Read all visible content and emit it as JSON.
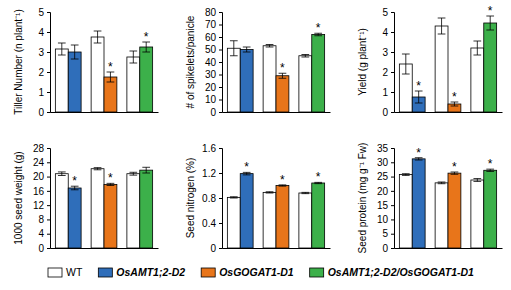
{
  "chart_data": [
    {
      "type": "bar",
      "y_label": "Tiller Number (n plant⁻¹)",
      "categories": [
        null,
        null,
        null
      ],
      "ylim": [
        0,
        5
      ],
      "yticks": [
        0,
        1,
        2,
        3,
        4,
        5
      ],
      "tick_labels": "y",
      "series": [
        {
          "name": "WT",
          "color": "#ffffff",
          "values": [
            3.15,
            3.75,
            2.75
          ],
          "errors": [
            0.3,
            0.3,
            0.3
          ]
        },
        {
          "name": "OsAMT1;2-D2",
          "color": "#2f6eba",
          "values": [
            3.0,
            null,
            null
          ],
          "errors": [
            0.35,
            null,
            null
          ],
          "annotations": [
            null,
            null,
            null
          ]
        },
        {
          "name": "OsGOGAT1-D1",
          "color": "#e8751a",
          "values": [
            null,
            1.75,
            null
          ],
          "errors": [
            null,
            0.25,
            null
          ],
          "annotations": [
            null,
            "*",
            null
          ]
        },
        {
          "name": "OsAMT1;2-D2/OsGOGAT1-D1",
          "color": "#3cb04a",
          "values": [
            null,
            null,
            3.25
          ],
          "errors": [
            null,
            null,
            0.25
          ],
          "annotations": [
            null,
            null,
            "*"
          ]
        }
      ]
    },
    {
      "type": "bar",
      "y_label": "# of spikelets/panicle",
      "categories": [
        null,
        null,
        null
      ],
      "ylim": [
        0,
        80
      ],
      "yticks": [
        0,
        10,
        20,
        30,
        40,
        50,
        60,
        70,
        80
      ],
      "tick_labels": "y",
      "series": [
        {
          "name": "WT",
          "color": "#ffffff",
          "values": [
            51,
            53,
            45
          ],
          "errors": [
            6,
            1,
            1
          ]
        },
        {
          "name": "OsAMT1;2-D2",
          "color": "#2f6eba",
          "values": [
            50,
            null,
            null
          ],
          "errors": [
            2,
            null,
            null
          ],
          "annotations": [
            null,
            null,
            null
          ]
        },
        {
          "name": "OsGOGAT1-D1",
          "color": "#e8751a",
          "values": [
            null,
            29,
            null
          ],
          "errors": [
            null,
            2,
            null
          ],
          "annotations": [
            null,
            "*",
            null
          ]
        },
        {
          "name": "OsAMT1;2-D2/OsGOGAT1-D1",
          "color": "#3cb04a",
          "values": [
            null,
            null,
            62
          ],
          "errors": [
            null,
            null,
            1
          ],
          "annotations": [
            null,
            null,
            "*"
          ]
        }
      ]
    },
    {
      "type": "bar",
      "y_label": "Yield (g plant⁻¹)",
      "categories": [
        null,
        null,
        null
      ],
      "ylim": [
        0,
        5
      ],
      "yticks": [
        0,
        1,
        2,
        3,
        4,
        5
      ],
      "tick_labels": "y",
      "series": [
        {
          "name": "WT",
          "color": "#ffffff",
          "values": [
            2.4,
            4.3,
            3.2
          ],
          "errors": [
            0.5,
            0.4,
            0.35
          ]
        },
        {
          "name": "OsAMT1;2-D2",
          "color": "#2f6eba",
          "values": [
            0.75,
            null,
            null
          ],
          "errors": [
            0.3,
            null,
            null
          ],
          "annotations": [
            "*",
            null,
            null
          ]
        },
        {
          "name": "OsGOGAT1-D1",
          "color": "#e8751a",
          "values": [
            null,
            0.4,
            null
          ],
          "errors": [
            null,
            0.1,
            null
          ],
          "annotations": [
            null,
            "*",
            null
          ]
        },
        {
          "name": "OsAMT1;2-D2/OsGOGAT1-D1",
          "color": "#3cb04a",
          "values": [
            null,
            null,
            4.45
          ],
          "errors": [
            null,
            null,
            0.35
          ],
          "annotations": [
            null,
            null,
            "*"
          ]
        }
      ]
    },
    {
      "type": "bar",
      "y_label": "1000 seed weight (g)",
      "categories": [
        null,
        null,
        null
      ],
      "ylim": [
        0,
        28
      ],
      "yticks": [
        0,
        4,
        8,
        12,
        16,
        20,
        24,
        28
      ],
      "tick_labels": "y",
      "series": [
        {
          "name": "WT",
          "color": "#ffffff",
          "values": [
            20.8,
            22.2,
            20.8
          ],
          "errors": [
            0.5,
            0.3,
            0.4
          ]
        },
        {
          "name": "OsAMT1;2-D2",
          "color": "#2f6eba",
          "values": [
            16.8,
            null,
            null
          ],
          "errors": [
            0.5,
            null,
            null
          ],
          "annotations": [
            "*",
            null,
            null
          ]
        },
        {
          "name": "OsGOGAT1-D1",
          "color": "#e8751a",
          "values": [
            null,
            17.8,
            null
          ],
          "errors": [
            null,
            0.3,
            null
          ],
          "annotations": [
            null,
            "*",
            null
          ]
        },
        {
          "name": "OsAMT1;2-D2/OsGOGAT1-D1",
          "color": "#3cb04a",
          "values": [
            null,
            null,
            21.8
          ],
          "errors": [
            null,
            null,
            0.8
          ],
          "annotations": [
            null,
            null,
            null
          ]
        }
      ]
    },
    {
      "type": "bar",
      "y_label": "Seed nitrogen (%)",
      "categories": [
        null,
        null,
        null
      ],
      "ylim": [
        0,
        1.6
      ],
      "yticks": [
        0,
        0.4,
        0.8,
        1.2,
        1.6
      ],
      "tick_labels": "y",
      "series": [
        {
          "name": "WT",
          "color": "#ffffff",
          "values": [
            0.81,
            0.89,
            0.88
          ],
          "errors": [
            0.01,
            0.01,
            0.01
          ]
        },
        {
          "name": "OsAMT1;2-D2",
          "color": "#2f6eba",
          "values": [
            1.19,
            null,
            null
          ],
          "errors": [
            0.02,
            null,
            null
          ],
          "annotations": [
            "*",
            null,
            null
          ]
        },
        {
          "name": "OsGOGAT1-D1",
          "color": "#e8751a",
          "values": [
            null,
            1.0,
            null
          ],
          "errors": [
            null,
            0.01,
            null
          ],
          "annotations": [
            null,
            "*",
            null
          ]
        },
        {
          "name": "OsAMT1;2-D2/OsGOGAT1-D1",
          "color": "#3cb04a",
          "values": [
            null,
            null,
            1.04
          ],
          "errors": [
            null,
            null,
            0.01
          ],
          "annotations": [
            null,
            null,
            "*"
          ]
        }
      ]
    },
    {
      "type": "bar",
      "y_label": "Seed protein (mg g⁻¹ Fw)",
      "categories": [
        null,
        null,
        null
      ],
      "ylim": [
        0,
        35
      ],
      "yticks": [
        0,
        5,
        10,
        15,
        20,
        25,
        30,
        35
      ],
      "tick_labels": "y",
      "series": [
        {
          "name": "WT",
          "color": "#ffffff",
          "values": [
            25.7,
            22.8,
            23.8
          ],
          "errors": [
            0.3,
            0.3,
            0.5
          ]
        },
        {
          "name": "OsAMT1;2-D2",
          "color": "#2f6eba",
          "values": [
            31.2,
            null,
            null
          ],
          "errors": [
            0.4,
            null,
            null
          ],
          "annotations": [
            "*",
            null,
            null
          ]
        },
        {
          "name": "OsGOGAT1-D1",
          "color": "#e8751a",
          "values": [
            null,
            26.2,
            null
          ],
          "errors": [
            null,
            0.4,
            null
          ],
          "annotations": [
            null,
            "*",
            null
          ]
        },
        {
          "name": "OsAMT1;2-D2/OsGOGAT1-D1",
          "color": "#3cb04a",
          "values": [
            null,
            null,
            27.2
          ],
          "errors": [
            null,
            null,
            0.4
          ],
          "annotations": [
            null,
            null,
            "*"
          ]
        }
      ]
    }
  ]
}
